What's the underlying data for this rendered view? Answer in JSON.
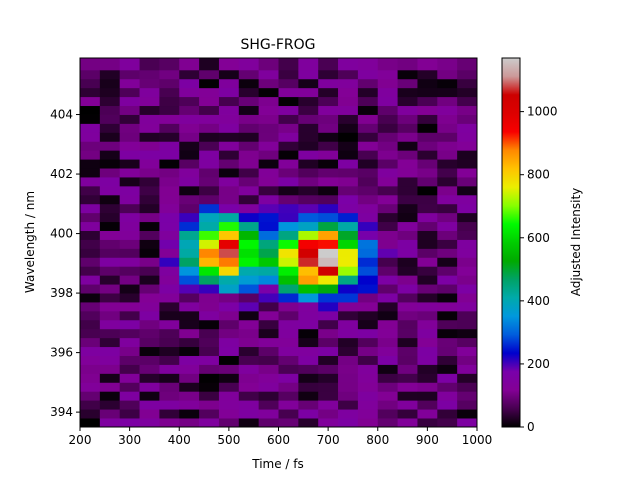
{
  "chart_data": {
    "type": "heatmap",
    "title": "SHG-FROG",
    "xlabel": "Time / fs",
    "ylabel": "Wavelength / nm",
    "colorbar_label": "Adjusted Intensity",
    "colormap": "nipy_spectral",
    "xlim": [
      200,
      1000
    ],
    "ylim": [
      393.5,
      405.9
    ],
    "x_ticks": [
      200,
      300,
      400,
      500,
      600,
      700,
      800,
      900,
      1000
    ],
    "y_ticks": [
      394,
      396,
      398,
      400,
      402,
      404
    ],
    "colorbar_range": [
      0,
      1170
    ],
    "colorbar_ticks": [
      0,
      200,
      400,
      600,
      800,
      1000
    ],
    "time_bins_fs": [
      200,
      240,
      280,
      320,
      360,
      400,
      440,
      480,
      520,
      560,
      600,
      640,
      680,
      720,
      760,
      800,
      840,
      880,
      920,
      960
    ],
    "time_step_fs": 40,
    "wavelength_bins_nm": [
      393.5,
      393.8,
      394.1,
      394.4,
      394.7,
      395.0,
      395.3,
      395.6,
      395.9,
      396.2,
      396.5,
      396.8,
      397.1,
      397.4,
      397.7,
      398.0,
      398.3,
      398.6,
      398.9,
      399.2,
      399.5,
      399.8,
      400.1,
      400.4,
      400.7,
      401.0,
      401.3,
      401.6,
      401.9,
      402.2,
      402.5,
      402.8,
      403.1,
      403.4,
      403.7,
      404.0,
      404.3,
      404.6,
      404.9,
      405.2,
      405.5
    ],
    "wavelength_step_nm": 0.3,
    "intensity_model": {
      "description": "two-lobed SHG-FROG trace centered near 399.4 nm",
      "lobes": [
        {
          "time_fs": 485,
          "wavelength_nm": 399.4,
          "peak": 1000,
          "sigma_time_fs": 45,
          "sigma_wavelength_nm": 0.75
        },
        {
          "time_fs": 675,
          "wavelength_nm": 399.2,
          "peak": 1120,
          "sigma_time_fs": 60,
          "sigma_wavelength_nm": 0.75
        }
      ],
      "background_range": [
        0,
        160
      ]
    }
  }
}
